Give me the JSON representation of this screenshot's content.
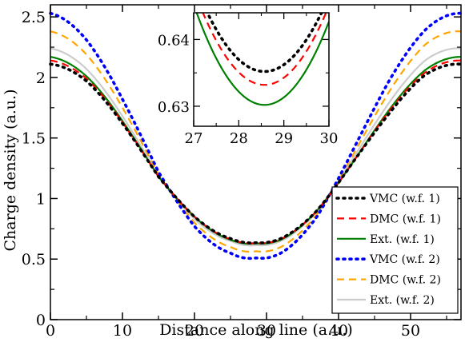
{
  "chart_data": {
    "type": "line",
    "title": "",
    "xlabel": "Distance along line (a.u.)",
    "ylabel": "Charge density (a.u.)",
    "xlim": [
      0,
      57
    ],
    "ylim": [
      0,
      2.6
    ],
    "xticks": [
      0,
      10,
      20,
      30,
      40,
      50
    ],
    "xtick_labels": [
      "0",
      "10",
      "20",
      "30",
      "40",
      "50"
    ],
    "yticks": [
      0,
      0.5,
      1,
      1.5,
      2,
      2.5
    ],
    "ytick_labels": [
      "0",
      "0.5",
      "1",
      "1.5",
      "2",
      "2.5"
    ],
    "grid": false,
    "legend_position": "bottom-right",
    "period": 57.14,
    "series": [
      {
        "name": "VMC (w.f. 1)",
        "color": "#000000",
        "style": "dotted",
        "x": [
          0,
          5,
          10,
          15,
          20,
          25,
          28.57,
          32,
          37,
          42,
          47,
          52,
          57
        ],
        "y": [
          2.11,
          1.97,
          1.62,
          1.18,
          0.85,
          0.67,
          0.635,
          0.67,
          0.9,
          1.3,
          1.7,
          2.02,
          2.11
        ]
      },
      {
        "name": "DMC (w.f. 1)",
        "color": "#ff0000",
        "style": "dashed",
        "x": [
          0,
          5,
          10,
          15,
          20,
          25,
          28.57,
          32,
          37,
          42,
          47,
          52,
          57
        ],
        "y": [
          2.14,
          1.99,
          1.63,
          1.18,
          0.85,
          0.665,
          0.633,
          0.665,
          0.9,
          1.3,
          1.72,
          2.04,
          2.14
        ]
      },
      {
        "name": "Ext. (w.f. 1)",
        "color": "#008000",
        "style": "solid",
        "x": [
          0,
          5,
          10,
          15,
          20,
          25,
          28.57,
          32,
          37,
          42,
          47,
          52,
          57
        ],
        "y": [
          2.17,
          2.01,
          1.64,
          1.18,
          0.85,
          0.66,
          0.63,
          0.66,
          0.9,
          1.3,
          1.73,
          2.06,
          2.17
        ]
      },
      {
        "name": "VMC (w.f. 2)",
        "color": "#0000ff",
        "style": "dotted",
        "x": [
          0,
          5,
          10,
          15,
          20,
          25,
          28.57,
          32,
          37,
          42,
          47,
          52,
          57
        ],
        "y": [
          2.53,
          2.31,
          1.82,
          1.22,
          0.77,
          0.55,
          0.51,
          0.55,
          0.85,
          1.4,
          1.97,
          2.39,
          2.53
        ]
      },
      {
        "name": "DMC (w.f. 2)",
        "color": "#ffa500",
        "style": "dashed",
        "x": [
          0,
          5,
          10,
          15,
          20,
          25,
          28.57,
          32,
          37,
          42,
          47,
          52,
          57
        ],
        "y": [
          2.38,
          2.19,
          1.75,
          1.2,
          0.8,
          0.6,
          0.565,
          0.6,
          0.87,
          1.36,
          1.88,
          2.27,
          2.38
        ]
      },
      {
        "name": "Ext. (w.f. 2)",
        "color": "#cccccc",
        "style": "solid",
        "x": [
          0,
          5,
          10,
          15,
          20,
          25,
          28.57,
          32,
          37,
          42,
          47,
          52,
          57
        ],
        "y": [
          2.24,
          2.07,
          1.68,
          1.19,
          0.83,
          0.65,
          0.615,
          0.65,
          0.89,
          1.33,
          1.79,
          2.14,
          2.24
        ]
      }
    ],
    "inset": {
      "xlim": [
        27,
        30
      ],
      "ylim": [
        0.627,
        0.644
      ],
      "xticks": [
        27,
        28,
        29,
        30
      ],
      "xtick_labels": [
        "27",
        "28",
        "29",
        "30"
      ],
      "yticks": [
        0.63,
        0.64
      ],
      "ytick_labels": [
        "0.63",
        "0.64"
      ],
      "series_shown": [
        "VMC (w.f. 1)",
        "DMC (w.f. 1)",
        "Ext. (w.f. 1)"
      ]
    }
  }
}
